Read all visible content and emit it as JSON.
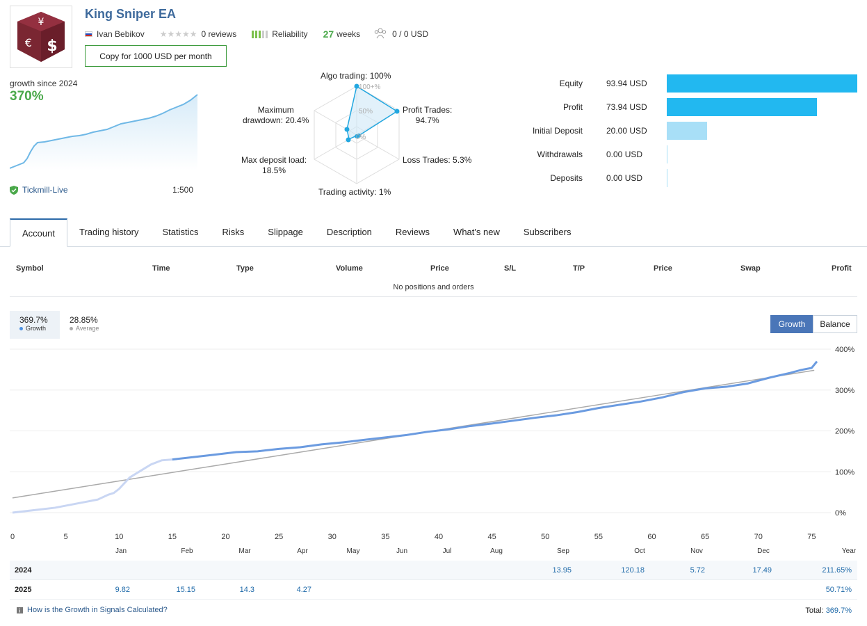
{
  "header": {
    "title": "King Sniper EA",
    "author": "Ivan Bebikov",
    "reviews": "0 reviews",
    "reliability_label": "Reliability",
    "weeks_num": "27",
    "weeks_label": "weeks",
    "subscribers": "0 / 0 USD",
    "copy_button": "Copy for 1000 USD per month"
  },
  "growth_summary": {
    "label": "growth since 2024",
    "value": "370%",
    "broker": "Tickmill-Live",
    "leverage": "1:500"
  },
  "radar": {
    "algo": "Algo trading: 100%",
    "profit_trades_1": "Profit Trades:",
    "profit_trades_2": "94.7%",
    "loss_trades": "Loss Trades: 5.3%",
    "activity": "Trading activity: 1%",
    "deposit_load_1": "Max deposit load:",
    "deposit_load_2": "18.5%",
    "drawdown_1": "Maximum",
    "drawdown_2": "drawdown: 20.4%",
    "tick_100": "100+%",
    "tick_50": "50%",
    "tick_0": "0%",
    "values": {
      "algo": 100,
      "profit_trades": 94.7,
      "loss_trades": 5.3,
      "activity": 1,
      "deposit_load": 18.5,
      "drawdown": 20.4
    }
  },
  "balance_bars": {
    "items": [
      {
        "label": "Equity",
        "value": "93.94 USD",
        "amount": 93.94,
        "color": "#22b8f0"
      },
      {
        "label": "Profit",
        "value": "73.94 USD",
        "amount": 73.94,
        "color": "#22b8f0"
      },
      {
        "label": "Initial Deposit",
        "value": "20.00 USD",
        "amount": 20.0,
        "color": "#a8dff7"
      },
      {
        "label": "Withdrawals",
        "value": "0.00 USD",
        "amount": 0,
        "color": "#a8dff7"
      },
      {
        "label": "Deposits",
        "value": "0.00 USD",
        "amount": 0,
        "color": "#a8dff7"
      }
    ]
  },
  "tabs": [
    "Account",
    "Trading history",
    "Statistics",
    "Risks",
    "Slippage",
    "Description",
    "Reviews",
    "What's new",
    "Subscribers"
  ],
  "positions": {
    "columns": [
      "Symbol",
      "Time",
      "Type",
      "Volume",
      "Price",
      "S/L",
      "T/P",
      "Price",
      "Swap",
      "Profit"
    ],
    "empty_text": "No positions and orders"
  },
  "legend": {
    "growth_value": "369.7%",
    "growth_label": "Growth",
    "avg_value": "28.85%",
    "avg_label": "Average",
    "btn_growth": "Growth",
    "btn_balance": "Balance"
  },
  "colors": {
    "growth_line": "#6b9be0",
    "growth_line_early": "#c9d6f3",
    "average_line": "#aaaaaa",
    "mini_line": "#6fb8e6"
  },
  "chart_data": {
    "type": "line",
    "x": [
      0,
      2,
      4,
      6,
      8,
      9,
      9.5,
      10,
      11,
      12,
      13,
      14,
      15,
      17,
      19,
      21,
      23,
      25,
      27,
      29,
      31,
      33,
      35,
      37,
      39,
      41,
      43,
      45,
      47,
      49,
      51,
      53,
      55,
      57,
      59,
      61,
      63,
      65,
      67,
      69,
      71,
      73,
      74,
      75,
      75.5
    ],
    "series": [
      {
        "name": "Growth",
        "values": [
          0,
          6,
          12,
          22,
          32,
          44,
          48,
          58,
          86,
          102,
          118,
          128,
          130,
          136,
          142,
          148,
          150,
          156,
          160,
          167,
          172,
          178,
          184,
          190,
          198,
          204,
          212,
          218,
          225,
          232,
          238,
          246,
          256,
          264,
          272,
          282,
          295,
          304,
          308,
          316,
          330,
          342,
          349,
          354,
          370
        ]
      },
      {
        "name": "Average",
        "values": [
          36,
          77.5,
          119,
          160.5,
          202,
          243.5,
          285,
          326.5,
          348.3
        ],
        "x": [
          0,
          10,
          20,
          30,
          40,
          50,
          60,
          70,
          75.25
        ]
      }
    ],
    "x_ticks": [
      0,
      5,
      10,
      15,
      20,
      25,
      30,
      35,
      40,
      45,
      50,
      55,
      60,
      65,
      70,
      75
    ],
    "y_ticks": [
      "0%",
      "100%",
      "200%",
      "300%",
      "400%"
    ],
    "ylim": [
      0,
      400
    ],
    "xlim": [
      0,
      76
    ]
  },
  "monthly": {
    "months": [
      "Jan",
      "Feb",
      "Mar",
      "Apr",
      "May",
      "Jun",
      "Jul",
      "Aug",
      "Sep",
      "Oct",
      "Nov",
      "Dec",
      "Year"
    ],
    "rows": [
      {
        "year": "2024",
        "cells": [
          "",
          "",
          "",
          "",
          "",
          "",
          "",
          "",
          "13.95",
          "120.18",
          "5.72",
          "17.49",
          "211.65%"
        ]
      },
      {
        "year": "2025",
        "cells": [
          "9.82",
          "15.15",
          "14.3",
          "4.27",
          "",
          "",
          "",
          "",
          "",
          "",
          "",
          "",
          "50.71%"
        ]
      }
    ]
  },
  "footer": {
    "help_link": "How is the Growth in Signals Calculated?",
    "total_label": "Total:",
    "total_value": "369.7%"
  }
}
